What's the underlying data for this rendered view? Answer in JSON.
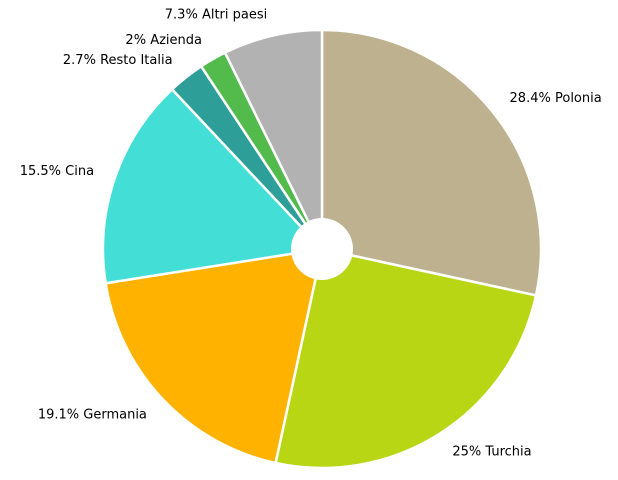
{
  "chart_data": {
    "type": "pie",
    "categories": [
      "Polonia",
      "Turchia",
      "Germania",
      "Cina",
      "Resto Italia",
      "Azienda",
      "Altri paesi"
    ],
    "values": [
      28.4,
      25,
      19.1,
      15.5,
      2.7,
      2,
      7.3
    ],
    "value_labels": [
      "28.4%",
      "25%",
      "19.1%",
      "15.5%",
      "2.7%",
      "2%",
      "7.3%"
    ],
    "colors": [
      "#bdb18f",
      "#b8d614",
      "#ffb300",
      "#43dfd6",
      "#2e9e98",
      "#52bb4c",
      "#b2b2b2"
    ]
  }
}
